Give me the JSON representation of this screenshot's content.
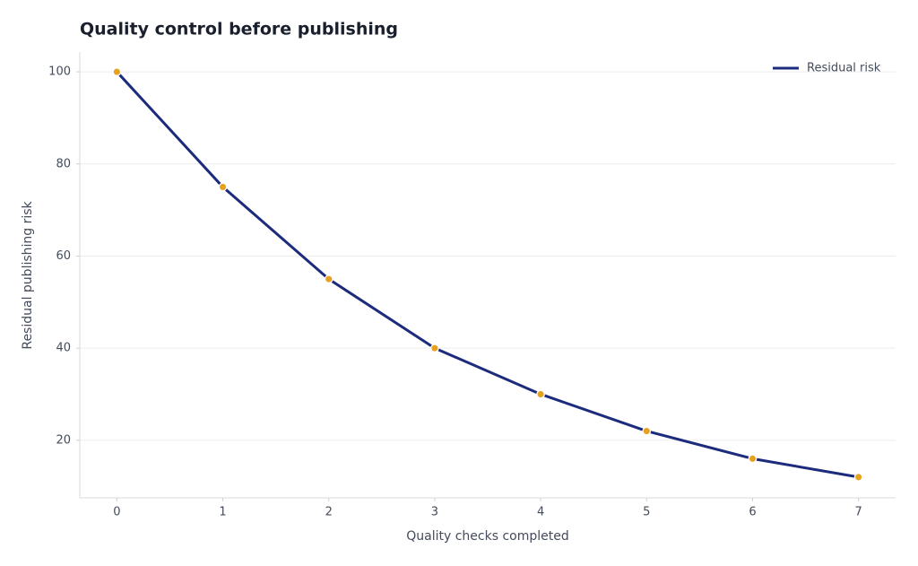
{
  "chart_data": {
    "type": "line",
    "title": "Quality control before publishing",
    "xlabel": "Quality checks completed",
    "ylabel": "Residual publishing risk",
    "x": [
      0,
      1,
      2,
      3,
      4,
      5,
      6,
      7
    ],
    "series": [
      {
        "name": "Residual risk",
        "color": "#1c2b7c",
        "marker_color": "#e8a11f",
        "values": [
          100,
          75,
          55,
          40,
          30,
          22,
          16,
          12
        ]
      }
    ],
    "xlim": [
      -0.35,
      7.35
    ],
    "ylim": [
      7.5,
      104.3
    ],
    "xticks": [
      0,
      1,
      2,
      3,
      4,
      5,
      6,
      7
    ],
    "yticks": [
      20,
      40,
      60,
      80,
      100
    ],
    "grid": true,
    "legend": "upper right"
  }
}
